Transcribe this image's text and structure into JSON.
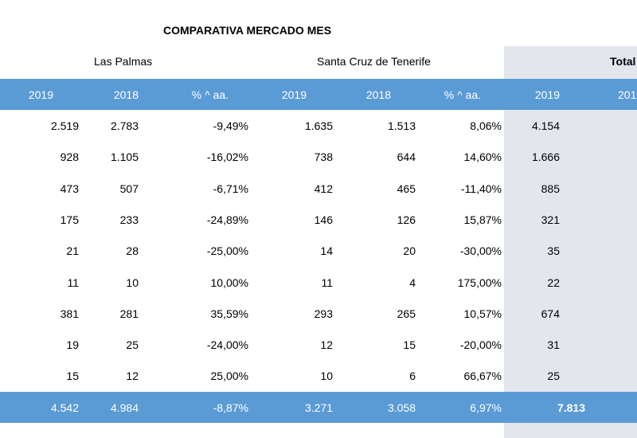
{
  "title": "COMPARATIVA MERCADO MES",
  "groups": [
    "Las Palmas",
    "Santa Cruz de Tenerife",
    "Total"
  ],
  "columns": [
    "2019",
    "2018",
    "% ^ aa.",
    "2019",
    "2018",
    "% ^ aa.",
    "2019",
    "201"
  ],
  "rows": [
    [
      "2.519",
      "2.783",
      "-9,49%",
      "1.635",
      "1.513",
      "8,06%",
      "4.154"
    ],
    [
      "928",
      "1.105",
      "-16,02%",
      "738",
      "644",
      "14,60%",
      "1.666"
    ],
    [
      "473",
      "507",
      "-6,71%",
      "412",
      "465",
      "-11,40%",
      "885"
    ],
    [
      "175",
      "233",
      "-24,89%",
      "146",
      "126",
      "15,87%",
      "321"
    ],
    [
      "21",
      "28",
      "-25,00%",
      "14",
      "20",
      "-30,00%",
      "35"
    ],
    [
      "11",
      "10",
      "10,00%",
      "11",
      "4",
      "175,00%",
      "22"
    ],
    [
      "381",
      "281",
      "35,59%",
      "293",
      "265",
      "10,57%",
      "674"
    ],
    [
      "19",
      "25",
      "-24,00%",
      "12",
      "15",
      "-20,00%",
      "31"
    ],
    [
      "15",
      "12",
      "25,00%",
      "10",
      "6",
      "66,67%",
      "25"
    ]
  ],
  "totals": [
    "4.542",
    "4.984",
    "-8,87%",
    "3.271",
    "3.058",
    "6,97%",
    "7.813"
  ],
  "colors": {
    "header_bar": "#5b9bd5",
    "total_panel": "#e4e6ee"
  }
}
